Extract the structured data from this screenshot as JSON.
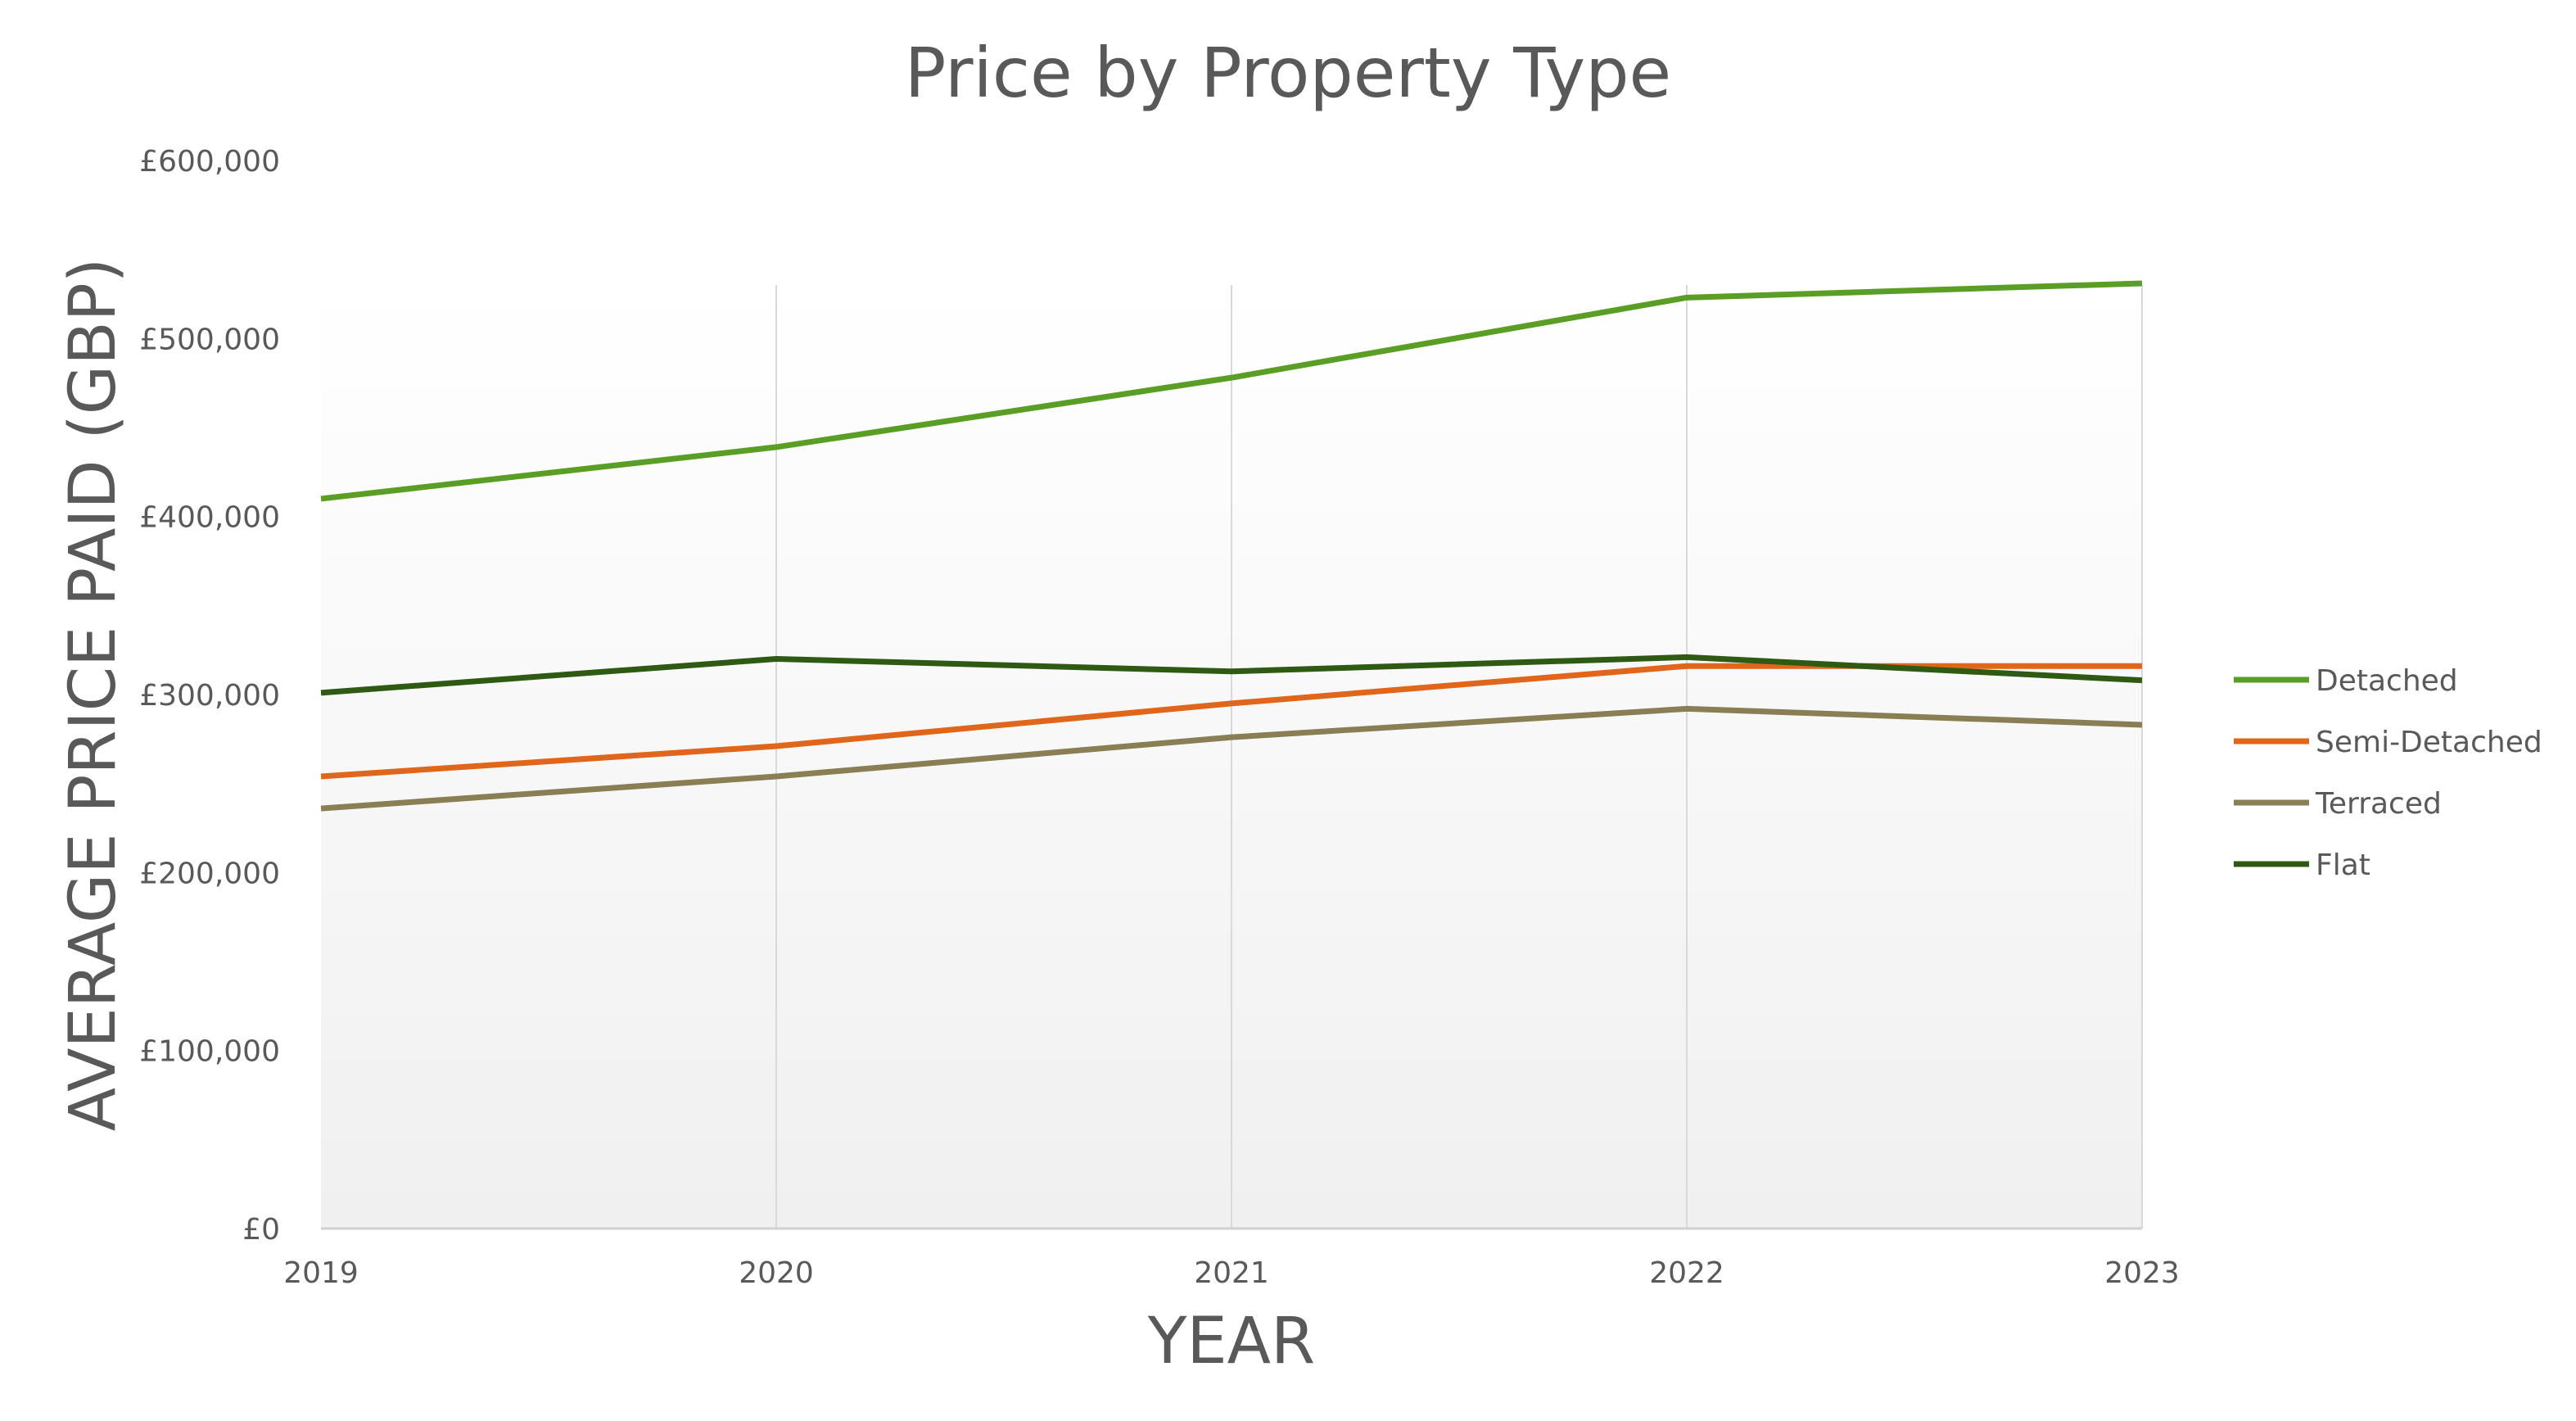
{
  "chart_data": {
    "type": "line",
    "title": "Price by Property Type",
    "xlabel": "YEAR",
    "ylabel": "AVERAGE PRICE PAID  (GBP)",
    "categories": [
      "2019",
      "2020",
      "2021",
      "2022",
      "2023"
    ],
    "y_ticks": [
      "£0",
      "£100,000",
      "£200,000",
      "£300,000",
      "£400,000",
      "£500,000",
      "£600,000"
    ],
    "ylim": [
      0,
      600000
    ],
    "grid": "vertical",
    "legend_position": "right",
    "series": [
      {
        "name": "Detached",
        "color": "#5a9e26",
        "values": [
          410000,
          439000,
          478000,
          523000,
          531000
        ]
      },
      {
        "name": "Semi-Detached",
        "color": "#e0661c",
        "values": [
          254000,
          271000,
          295000,
          316000,
          316000
        ]
      },
      {
        "name": "Terraced",
        "color": "#8a7e55",
        "values": [
          236000,
          254000,
          276000,
          292000,
          283000
        ]
      },
      {
        "name": "Flat",
        "color": "#2e5a14",
        "values": [
          301000,
          320000,
          313000,
          321000,
          308000
        ]
      }
    ]
  }
}
